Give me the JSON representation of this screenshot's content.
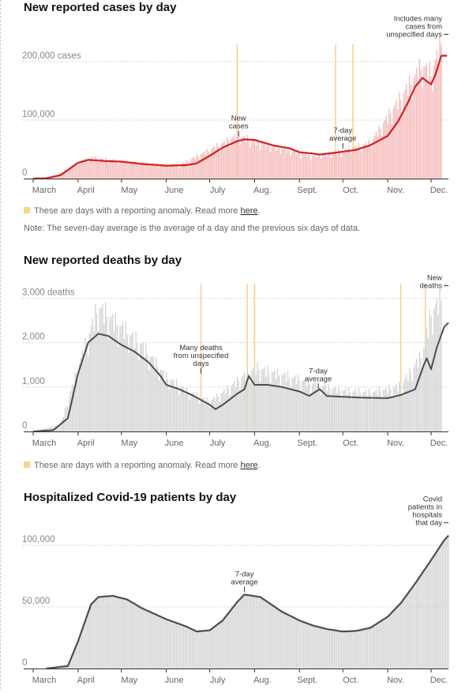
{
  "colors": {
    "cases_bar": "#f6b9b9",
    "cases_line": "#d21f1f",
    "gray_bar": "#d3d3d3",
    "gray_line": "#4d4d4d",
    "anomaly": "#f5d48c",
    "grid": "#d4d4d4",
    "axis": "#333333"
  },
  "anomaly_note": {
    "text": "These are days with a reporting anomaly. Read more ",
    "link": "here",
    "suffix": "."
  },
  "avg_note": "Note: The seven-day average is the average of a day and the previous six days of data.",
  "chart_data": [
    {
      "id": "cases",
      "type": "bar",
      "title": "New reported cases by day",
      "x_tick_labels": [
        "March",
        "April",
        "May",
        "June",
        "July",
        "Aug.",
        "Sept.",
        "Oct.",
        "Nov.",
        "Dec."
      ],
      "y_tick_labels": [
        "0",
        "100,000",
        "200,000 cases"
      ],
      "y_ticks": [
        0,
        100000,
        200000
      ],
      "ylim": [
        0,
        235000
      ],
      "grid": true,
      "colors": {
        "bar": "#f6b9b9",
        "line": "#d21f1f"
      },
      "series": [
        {
          "name": "New cases",
          "kind": "bar",
          "x": [
            "Mar 1",
            "Mar 15",
            "Apr 1",
            "Apr 10",
            "May 1",
            "May 20",
            "Jun 10",
            "Jul 1",
            "Jul 20",
            "Aug 1",
            "Aug 20",
            "Sep 10",
            "Oct 1",
            "Oct 20",
            "Nov 10",
            "Nov 25",
            "Dec 1",
            "Dec 8"
          ],
          "values": [
            100,
            1500,
            27000,
            35000,
            29000,
            25000,
            23000,
            48000,
            72000,
            62000,
            50000,
            38000,
            46000,
            60000,
            135000,
            190000,
            175000,
            225000
          ]
        },
        {
          "name": "7-day average",
          "kind": "line",
          "x": [
            "Mar 1",
            "Mar 10",
            "Mar 20",
            "Apr 1",
            "Apr 8",
            "Apr 20",
            "May 1",
            "May 15",
            "Jun 1",
            "Jun 15",
            "Jun 22",
            "Jul 1",
            "Jul 10",
            "Jul 20",
            "Jul 25",
            "Aug 1",
            "Aug 15",
            "Aug 25",
            "Sep 1",
            "Sep 10",
            "Sep 15",
            "Sep 25",
            "Oct 1",
            "Oct 10",
            "Oct 20",
            "Nov 1",
            "Nov 8",
            "Nov 15",
            "Nov 20",
            "Nov 25",
            "Dec 1",
            "Dec 4",
            "Dec 8",
            "Dec 12"
          ],
          "values": [
            0,
            500,
            6000,
            27000,
            32000,
            30000,
            29000,
            25000,
            22000,
            23000,
            26000,
            39000,
            53000,
            64000,
            67000,
            66000,
            56000,
            52000,
            45000,
            43000,
            41000,
            44000,
            46000,
            49000,
            57000,
            73000,
            97000,
            130000,
            157000,
            172000,
            161000,
            178000,
            210000,
            210000
          ]
        }
      ],
      "anomaly_x": [
        "Jul 20",
        "Sep 26",
        "Oct 8",
        "Dec 8"
      ],
      "annotations": [
        {
          "lines": [
            "New",
            "cases"
          ],
          "x": "Jul 21",
          "y": 68000
        },
        {
          "lines": [
            "7-day",
            "average"
          ],
          "x": "Oct 1",
          "y": 47000
        },
        {
          "lines": [
            "Includes many",
            "cases from",
            "unspecified days"
          ],
          "x": "Dec 10",
          "y": 225000
        }
      ]
    },
    {
      "id": "deaths",
      "type": "bar",
      "title": "New reported deaths by day",
      "x_tick_labels": [
        "March",
        "April",
        "May",
        "June",
        "July",
        "Aug.",
        "Sept.",
        "Oct.",
        "Nov.",
        "Dec."
      ],
      "y_tick_labels": [
        "0",
        "1,000",
        "2,000",
        "3,000 deaths"
      ],
      "y_ticks": [
        0,
        1000,
        2000,
        3000
      ],
      "ylim": [
        0,
        3400
      ],
      "grid": true,
      "colors": {
        "bar": "#d3d3d3",
        "line": "#4d4d4d"
      },
      "series": [
        {
          "name": "New deaths",
          "kind": "bar",
          "x": [
            "Mar 1",
            "Mar 20",
            "Apr 1",
            "Apr 15",
            "May 1",
            "May 15",
            "Jun 1",
            "Jun 15",
            "Jul 1",
            "Jul 20",
            "Aug 1",
            "Aug 20",
            "Sep 10",
            "Oct 1",
            "Oct 20",
            "Nov 10",
            "Nov 25",
            "Dec 1",
            "Dec 8"
          ],
          "values": [
            0,
            150,
            1400,
            2750,
            2300,
            1900,
            1200,
            900,
            650,
            1100,
            1400,
            1250,
            1050,
            900,
            850,
            1000,
            1700,
            2600,
            2950
          ]
        },
        {
          "name": "7-day average",
          "kind": "line",
          "x": [
            "Mar 1",
            "Mar 15",
            "Mar 25",
            "Apr 1",
            "Apr 8",
            "Apr 15",
            "Apr 22",
            "May 1",
            "May 10",
            "May 20",
            "May 28",
            "Jun 1",
            "Jun 10",
            "Jun 20",
            "Jul 1",
            "Jul 5",
            "Jul 10",
            "Jul 20",
            "Jul 25",
            "Jul 28",
            "Aug 1",
            "Aug 10",
            "Aug 20",
            "Sep 1",
            "Sep 8",
            "Sep 10",
            "Sep 15",
            "Sep 20",
            "Oct 1",
            "Oct 15",
            "Nov 1",
            "Nov 10",
            "Nov 20",
            "Nov 26",
            "Nov 28",
            "Dec 1",
            "Dec 5",
            "Dec 10",
            "Dec 13"
          ],
          "values": [
            0,
            30,
            300,
            1300,
            2000,
            2200,
            2150,
            1950,
            1800,
            1550,
            1250,
            1050,
            950,
            800,
            600,
            500,
            600,
            850,
            950,
            1250,
            1050,
            1050,
            1000,
            900,
            800,
            850,
            950,
            800,
            780,
            760,
            750,
            820,
            950,
            1500,
            1650,
            1400,
            1900,
            2350,
            2450
          ]
        }
      ],
      "anomaly_x": [
        "Jun 25",
        "Jul 27",
        "Aug 1",
        "Nov 10",
        "Nov 27"
      ],
      "annotations": [
        {
          "lines": [
            "Many deaths",
            "from unspecified",
            "days"
          ],
          "x": "Jun 25",
          "y": 1250
        },
        {
          "lines": [
            "7-day",
            "average"
          ],
          "x": "Sep 14",
          "y": 900
        },
        {
          "lines": [
            "New",
            "deaths"
          ],
          "x": "Dec 12",
          "y": 3000
        }
      ]
    },
    {
      "id": "hospital",
      "type": "bar",
      "title": "Hospitalized Covid-19 patients by day",
      "x_tick_labels": [
        "March",
        "April",
        "May",
        "June",
        "July",
        "Aug.",
        "Sept.",
        "Oct.",
        "Nov.",
        "Dec."
      ],
      "y_tick_labels": [
        "0",
        "50,000",
        "100,000"
      ],
      "y_ticks": [
        0,
        50000,
        100000
      ],
      "ylim": [
        0,
        118000
      ],
      "grid": true,
      "colors": {
        "bar": "#d3d3d3",
        "line": "#4d4d4d"
      },
      "series": [
        {
          "name": "Hospitalized patients",
          "kind": "bar",
          "x": [
            "Mar 10",
            "Mar 25",
            "Apr 1",
            "Apr 10",
            "Apr 15",
            "Apr 25",
            "May 5",
            "May 15",
            "Jun 1",
            "Jun 15",
            "Jun 22",
            "Jul 1",
            "Jul 10",
            "Jul 20",
            "Jul 25",
            "Aug 5",
            "Aug 20",
            "Sep 1",
            "Sep 10",
            "Sep 20",
            "Oct 1",
            "Oct 10",
            "Oct 20",
            "Nov 1",
            "Nov 10",
            "Nov 20",
            "Dec 1",
            "Dec 10",
            "Dec 13"
          ],
          "values": [
            0,
            2000,
            22000,
            52000,
            58000,
            59000,
            56000,
            49000,
            40000,
            34000,
            30000,
            31000,
            39000,
            54000,
            60000,
            58000,
            46000,
            39000,
            35000,
            32000,
            30000,
            30500,
            33000,
            42000,
            53000,
            69000,
            88000,
            104000,
            108000
          ]
        }
      ],
      "annotations": [
        {
          "lines": [
            "7-day",
            "average"
          ],
          "x": "Jul 25",
          "y": 60000
        },
        {
          "lines": [
            "Covid",
            "patients in",
            "hospitals",
            "that day"
          ],
          "x": "Dec 13",
          "y": 108000
        }
      ]
    }
  ]
}
